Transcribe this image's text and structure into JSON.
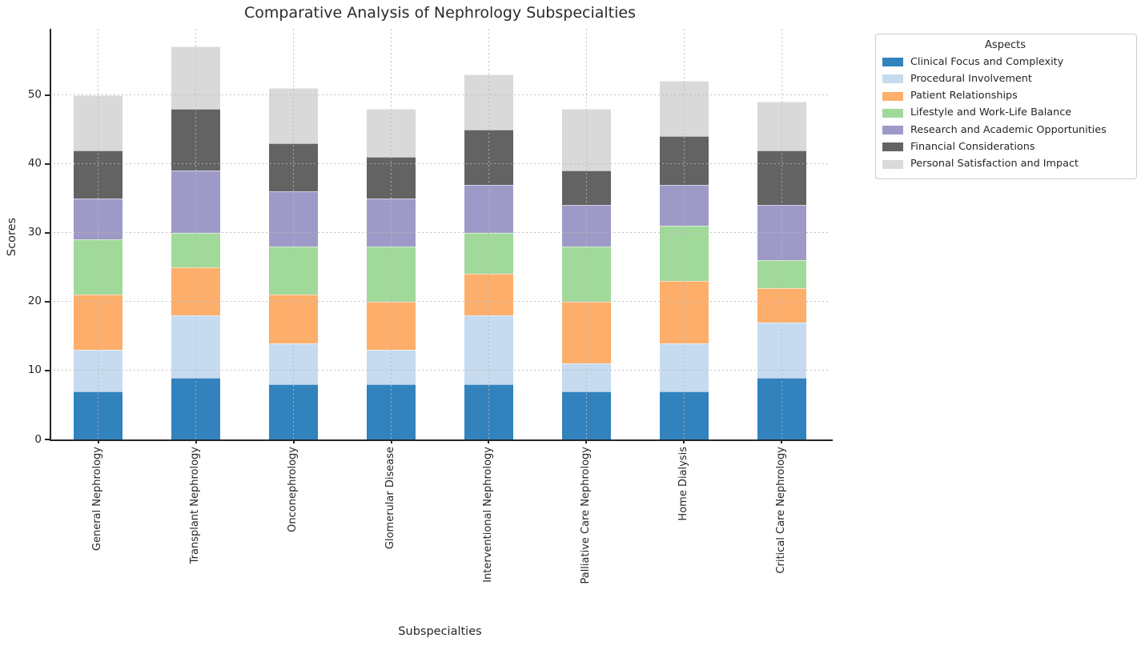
{
  "chart_data": {
    "type": "bar",
    "stacked": true,
    "title": "Comparative Analysis of Nephrology Subspecialties",
    "xlabel": "Subspecialties",
    "ylabel": "Scores",
    "legend_title": "Aspects",
    "legend_position": "upper right outside plot",
    "grid": "dashed both axes, drawn over bars",
    "ylim": [
      0,
      59.6
    ],
    "yticks": [
      0,
      10,
      20,
      30,
      40,
      50
    ],
    "categories": [
      "General Nephrology",
      "Transplant Nephrology",
      "Onconephrology",
      "Glomerular Disease",
      "Interventional Nephrology",
      "Palliative Care Nephrology",
      "Home Dialysis",
      "Critical Care Nephrology"
    ],
    "series": [
      {
        "name": "Clinical Focus and Complexity",
        "color": "#3182bd",
        "values": [
          7,
          9,
          8,
          8,
          8,
          7,
          7,
          9
        ]
      },
      {
        "name": "Procedural Involvement",
        "color": "#c6dbef",
        "values": [
          6,
          9,
          6,
          5,
          10,
          4,
          7,
          8
        ]
      },
      {
        "name": "Patient Relationships",
        "color": "#fdae6b",
        "values": [
          8,
          7,
          7,
          7,
          6,
          9,
          9,
          5
        ]
      },
      {
        "name": "Lifestyle and Work-Life Balance",
        "color": "#a1d99b",
        "values": [
          8,
          5,
          7,
          8,
          6,
          8,
          8,
          4
        ]
      },
      {
        "name": "Research and Academic Opportunities",
        "color": "#9e9ac8",
        "values": [
          6,
          9,
          8,
          7,
          7,
          6,
          6,
          8
        ]
      },
      {
        "name": "Financial Considerations",
        "color": "#636363",
        "values": [
          7,
          9,
          7,
          6,
          8,
          5,
          7,
          8
        ]
      },
      {
        "name": "Personal Satisfaction and Impact",
        "color": "#d9d9d9",
        "values": [
          8,
          9,
          8,
          7,
          8,
          9,
          8,
          7
        ]
      }
    ],
    "stack_totals": [
      50,
      57,
      51,
      48,
      53,
      48,
      52,
      49
    ]
  }
}
